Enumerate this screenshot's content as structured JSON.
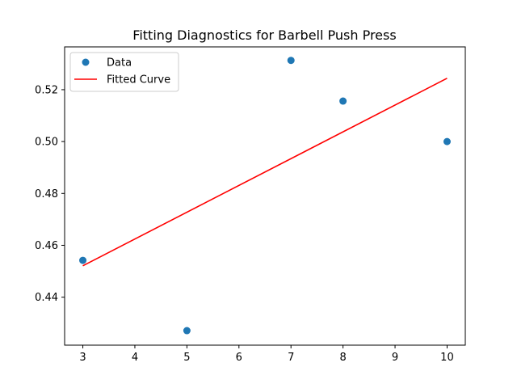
{
  "chart_data": {
    "type": "scatter",
    "title": "Fitting Diagnostics for Barbell Push Press",
    "xlabel": "",
    "ylabel": "",
    "xlim": [
      2.65,
      10.35
    ],
    "ylim": [
      0.4215,
      0.5365
    ],
    "x_ticks": [
      3,
      4,
      5,
      6,
      7,
      8,
      9,
      10
    ],
    "y_ticks": [
      0.44,
      0.46,
      0.48,
      0.5,
      0.52
    ],
    "legend_position": "top-left",
    "grid": false,
    "series": [
      {
        "name": "Data",
        "kind": "scatter",
        "color": "#1f77b4",
        "points": [
          {
            "x": 3,
            "y": 0.4542
          },
          {
            "x": 5,
            "y": 0.4271
          },
          {
            "x": 7,
            "y": 0.5313
          },
          {
            "x": 8,
            "y": 0.5156
          },
          {
            "x": 10,
            "y": 0.5
          }
        ]
      },
      {
        "name": "Fitted Curve",
        "kind": "line",
        "color": "#ff0000",
        "points": [
          {
            "x": 3,
            "y": 0.4521
          },
          {
            "x": 10,
            "y": 0.5244
          }
        ]
      }
    ]
  }
}
